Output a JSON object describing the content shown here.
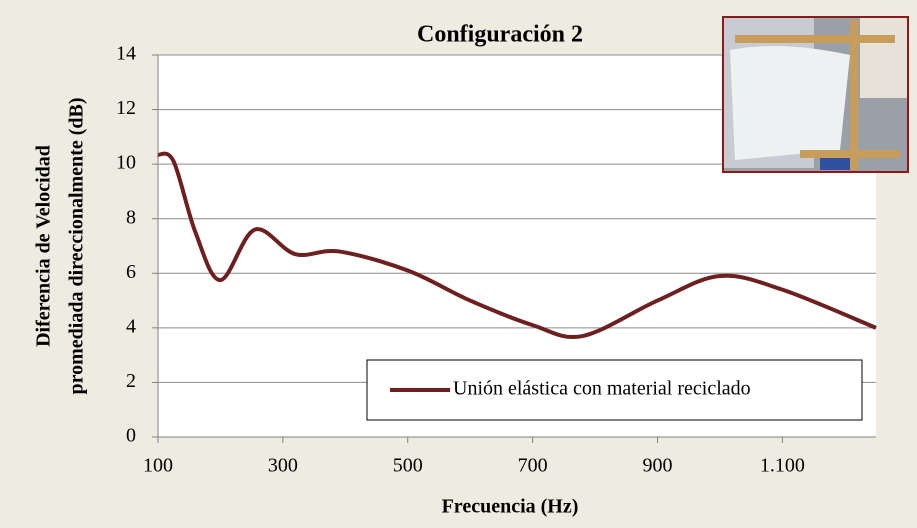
{
  "chart_data": {
    "type": "line",
    "title": "Configuración 2",
    "xlabel": "Frecuencia (Hz)",
    "ylabel": [
      "Diferencia de Velocidad",
      "promediada direccionalmente (dB)"
    ],
    "x": [
      100,
      125,
      160,
      200,
      255,
      320,
      390,
      500,
      600,
      700,
      780,
      900,
      1000,
      1100,
      1250
    ],
    "series": [
      {
        "name": "Unión elástica con material reciclado",
        "color": "#6e1f1f",
        "values": [
          10.35,
          10.1,
          7.5,
          5.75,
          7.6,
          6.7,
          6.8,
          6.1,
          5.0,
          4.1,
          3.7,
          5.0,
          5.9,
          5.4,
          4.0
        ]
      }
    ],
    "xlim": [
      100,
      1250
    ],
    "xticks": [
      100,
      300,
      500,
      700,
      900,
      {
        "value": 1100,
        "label": "1.100"
      }
    ],
    "ylim": [
      0,
      14
    ],
    "yticks": [
      0,
      2,
      4,
      6,
      8,
      10,
      12,
      14
    ],
    "grid": true,
    "legend": "lower right"
  }
}
